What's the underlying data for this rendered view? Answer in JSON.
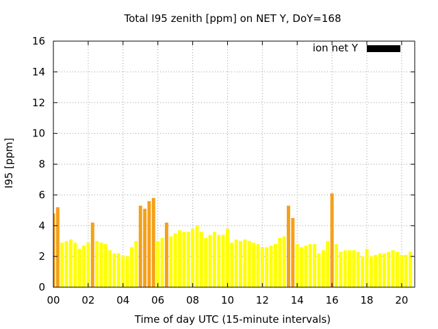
{
  "chart_data": {
    "type": "bar",
    "title": "Total I95 zenith [ppm] on NET Y, DoY=168",
    "xlabel": "Time of day UTC (15-minute intervals)",
    "ylabel": "I95 [ppm]",
    "ylim": [
      0,
      16
    ],
    "y_ticks": [
      "0",
      "2",
      "4",
      "6",
      "8",
      "10",
      "12",
      "14",
      "16"
    ],
    "x_tick_labels": [
      "00",
      "02",
      "04",
      "06",
      "08",
      "10",
      "12",
      "14",
      "16",
      "18",
      "20"
    ],
    "x_tick_hours": [
      0,
      2,
      4,
      6,
      8,
      10,
      12,
      14,
      16,
      18,
      20
    ],
    "xlim_hours": [
      0,
      20.75
    ],
    "interval_hours": 0.25,
    "grid": true,
    "legend_position": "top-right",
    "legend_color": "#000000",
    "colors": {
      "normal": "#ffff00",
      "elevated": "#f5a01a",
      "grid": "#999999"
    },
    "elevated_threshold": 4,
    "series": [
      {
        "name": "ion net Y",
        "x_start_hours": 0,
        "values": [
          4.8,
          5.2,
          2.9,
          3.0,
          3.1,
          2.9,
          2.5,
          2.7,
          2.9,
          4.2,
          3.0,
          2.9,
          2.8,
          2.4,
          2.2,
          2.2,
          2.0,
          2.0,
          2.6,
          3.0,
          5.3,
          5.1,
          5.6,
          5.8,
          3.0,
          3.2,
          4.2,
          3.3,
          3.5,
          3.7,
          3.6,
          3.6,
          3.8,
          4.0,
          3.6,
          3.2,
          3.4,
          3.6,
          3.4,
          3.4,
          3.8,
          2.9,
          3.1,
          3.0,
          3.1,
          3.0,
          2.9,
          2.8,
          2.6,
          2.6,
          2.7,
          2.8,
          3.2,
          3.3,
          5.3,
          4.5,
          2.8,
          2.6,
          2.7,
          2.8,
          2.8,
          2.2,
          2.4,
          3.0,
          6.1,
          2.8,
          2.3,
          2.4,
          2.4,
          2.4,
          2.3,
          2.0,
          2.5,
          2.0,
          2.1,
          2.2,
          2.2,
          2.3,
          2.4,
          2.3,
          2.1,
          2.1,
          2.3
        ]
      }
    ]
  }
}
